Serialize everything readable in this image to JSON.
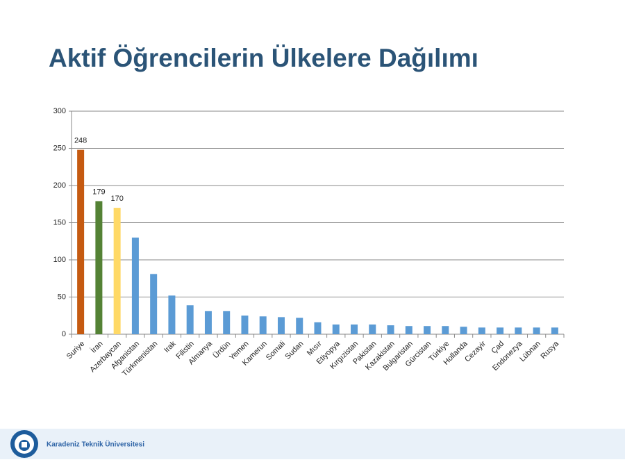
{
  "chart_data": {
    "type": "bar",
    "title": "Aktif Öğrencilerin Ülkelere Dağılımı",
    "categories": [
      "Suriye",
      "İran",
      "Azerbaycan",
      "Afganistan",
      "Türkmenistan",
      "Irak",
      "Filistin",
      "Almanya",
      "Ürdün",
      "Yemen",
      "Kamerun",
      "Somali",
      "Sudan",
      "Mısır",
      "Etiyopya",
      "Kırgızistan",
      "Pakistan",
      "Kazakistan",
      "Bulgaristan",
      "Gürcistan",
      "Türkiye",
      "Hollanda",
      "Cezayir",
      "Çad",
      "Endonezya",
      "Lübnan",
      "Rusya"
    ],
    "values": [
      248,
      179,
      170,
      130,
      81,
      52,
      39,
      31,
      31,
      25,
      24,
      23,
      22,
      16,
      13,
      13,
      13,
      12,
      11,
      11,
      11,
      10,
      9,
      9,
      9,
      9,
      9
    ],
    "colors": [
      "#c55a11",
      "#548235",
      "#ffd966",
      "#5b9bd5",
      "#5b9bd5",
      "#5b9bd5",
      "#5b9bd5",
      "#5b9bd5",
      "#5b9bd5",
      "#5b9bd5",
      "#5b9bd5",
      "#5b9bd5",
      "#5b9bd5",
      "#5b9bd5",
      "#5b9bd5",
      "#5b9bd5",
      "#5b9bd5",
      "#5b9bd5",
      "#5b9bd5",
      "#5b9bd5",
      "#5b9bd5",
      "#5b9bd5",
      "#5b9bd5",
      "#5b9bd5",
      "#5b9bd5",
      "#5b9bd5",
      "#5b9bd5"
    ],
    "show_value_labels": [
      true,
      true,
      true,
      false,
      false,
      false,
      false,
      false,
      false,
      false,
      false,
      false,
      false,
      false,
      false,
      false,
      false,
      false,
      false,
      false,
      false,
      false,
      false,
      false,
      false,
      false,
      false
    ],
    "ylim": [
      0,
      300
    ],
    "yticks": [
      0,
      50,
      100,
      150,
      200,
      250,
      300
    ],
    "grid": true
  },
  "footer": {
    "institution": "Karadeniz Teknik Üniversitesi"
  }
}
